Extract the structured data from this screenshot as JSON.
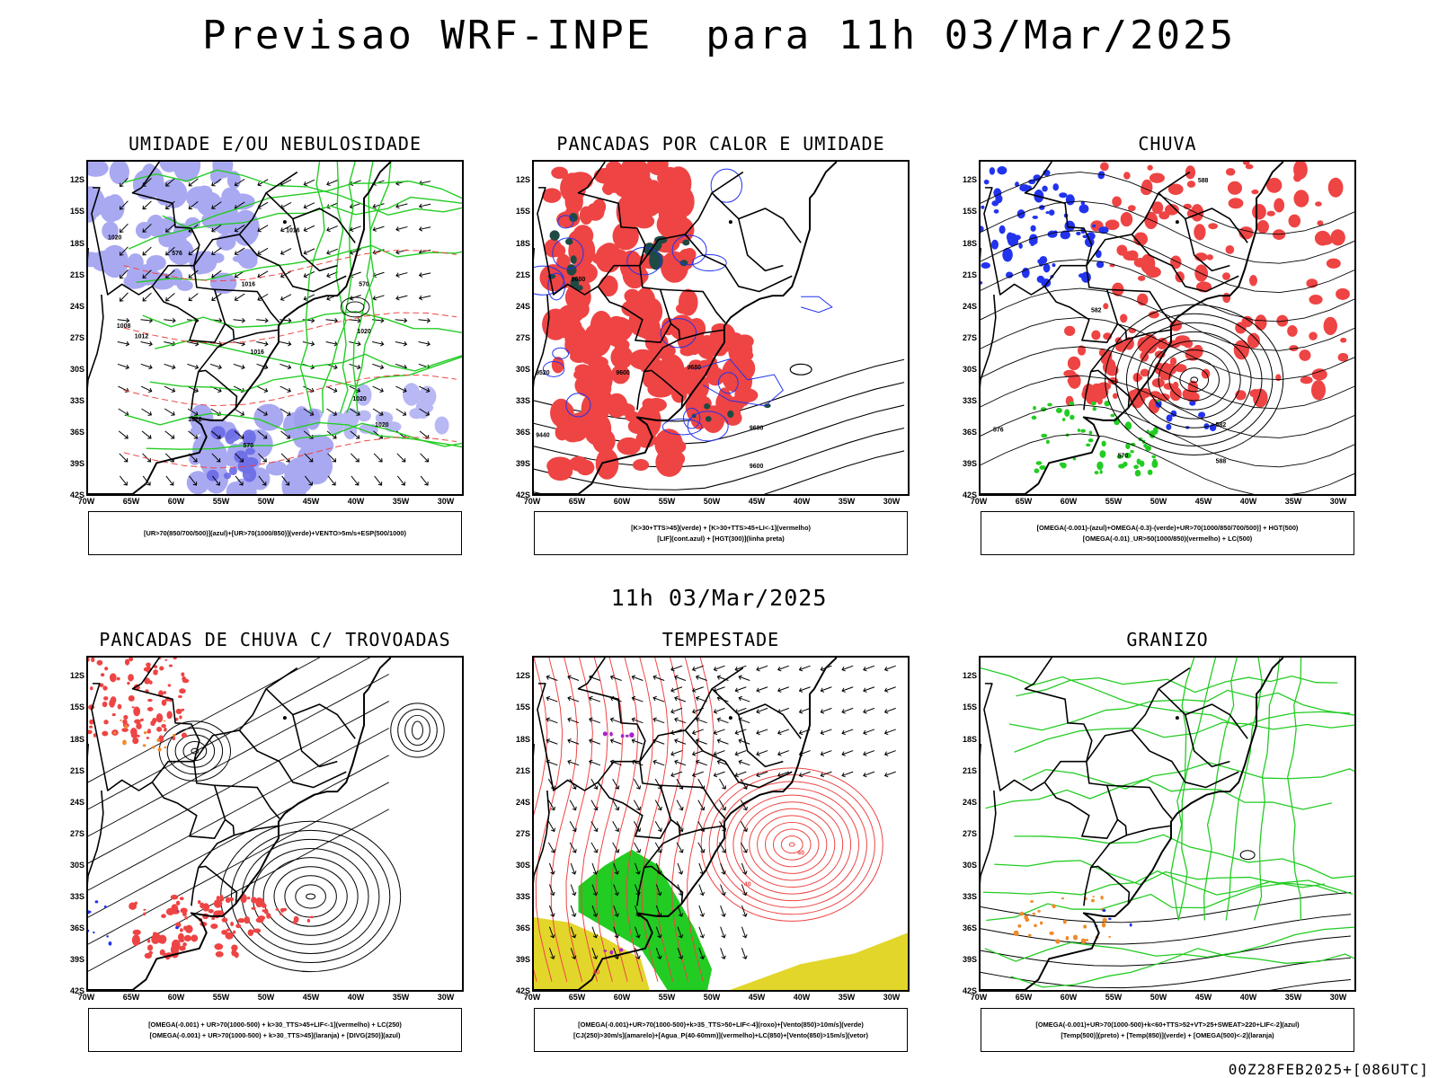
{
  "title": "Previsao WRF-INPE  para 11h 03/Mar/2025",
  "mid_label": "11h 03/Mar/2025",
  "footer": "00Z28FEB2025+[086UTC]",
  "colors": {
    "frame": "#000000",
    "humidity_blue": "#9b9bf0",
    "humidity_blue_dark": "#6a6ae6",
    "green": "#22cc22",
    "red": "#ee4444",
    "dark_teal": "#1f4a44",
    "blue": "#2233ee",
    "yellow": "#e2d62a",
    "orange": "#f08a2a",
    "purple": "#aa22cc"
  },
  "chart_data": [
    {
      "type": "map",
      "id": "umidade",
      "title": "UMIDADE E/OU NEBULOSIDADE",
      "legend": [
        "[UR>70(850/700/500)](azul)+[UR>70(1000/850)](verde)+VENTO>5m/s+ESP(500/1000)"
      ],
      "lat_ticks": [
        "12S",
        "15S",
        "18S",
        "21S",
        "24S",
        "27S",
        "30S",
        "33S",
        "36S",
        "39S",
        "42S"
      ],
      "lon_ticks": [
        "70W",
        "65W",
        "60W",
        "55W",
        "50W",
        "45W",
        "40W",
        "35W",
        "30W"
      ],
      "contour_labels": [
        "1016",
        "1016",
        "1020",
        "1012",
        "1008",
        "1016",
        "1020",
        "1020",
        "1020",
        "1012",
        "576",
        "570",
        "570"
      ]
    },
    {
      "type": "map",
      "id": "pancadas_calor",
      "title": "PANCADAS POR CALOR E UMIDADE",
      "legend": [
        "[K>30+TTS>45](verde) + [K>30+TTS>45+LI<-1](vermelho)",
        "[LIF](cont.azul) + [HGT(300)](linha preta)"
      ],
      "lat_ticks": [
        "12S",
        "15S",
        "18S",
        "21S",
        "24S",
        "27S",
        "30S",
        "33S",
        "36S",
        "39S",
        "42S"
      ],
      "lon_ticks": [
        "70W",
        "65W",
        "60W",
        "55W",
        "50W",
        "45W",
        "40W",
        "35W",
        "30W"
      ],
      "contour_labels": [
        "9600",
        "9600",
        "9680",
        "9680",
        "9440",
        "9520",
        "9600"
      ]
    },
    {
      "type": "map",
      "id": "chuva",
      "title": "CHUVA",
      "legend": [
        "[OMEGA(-0.001)-(azul)+OMEGA(-0.3)-(verde)+UR>70(1000/850/700/500)] + HGT(500)",
        "[OMEGA(-0.01)_UR>50(1000/850)(vermelho) + LC(500)"
      ],
      "lat_ticks": [
        "12S",
        "15S",
        "18S",
        "21S",
        "24S",
        "27S",
        "30S",
        "33S",
        "36S",
        "39S",
        "42S"
      ],
      "lon_ticks": [
        "70W",
        "65W",
        "60W",
        "55W",
        "50W",
        "45W",
        "40W",
        "35W",
        "30W"
      ],
      "contour_labels": [
        "588",
        "582",
        "576",
        "570",
        "582",
        "588"
      ]
    },
    {
      "type": "map",
      "id": "pancadas_trovoadas",
      "title": "PANCADAS DE CHUVA C/ TROVOADAS",
      "legend": [
        "[OMEGA(-0.001) + UR>70(1000-500) + k>30_TTS>45+LIF<-1](vermelho) + LC(250)",
        "[OMEGA(-0.001) + UR>70(1000-500) + k>30_TTS>45](laranja) + [DIVG(250)](azul)"
      ],
      "lat_ticks": [
        "12S",
        "15S",
        "18S",
        "21S",
        "24S",
        "27S",
        "30S",
        "33S",
        "36S",
        "39S",
        "42S"
      ],
      "lon_ticks": [
        "70W",
        "65W",
        "60W",
        "55W",
        "50W",
        "45W",
        "40W",
        "35W",
        "30W"
      ],
      "contour_labels": []
    },
    {
      "type": "map",
      "id": "tempestade",
      "title": "TEMPESTADE",
      "legend": [
        "[OMEGA(-0.001)+UR>70(1000-500)+k>35_TTS>50+LIF<-4](roxo)+[Vento(850)>10m/s](verde)",
        "[CJ(250)>30m/s](amarelo)+[Agua_P(40-60mm)](vermelho)+LC(850)+[Vento(850)>15m/s](vetor)"
      ],
      "lat_ticks": [
        "12S",
        "15S",
        "18S",
        "21S",
        "24S",
        "27S",
        "30S",
        "33S",
        "36S",
        "39S",
        "42S"
      ],
      "lon_ticks": [
        "70W",
        "65W",
        "60W",
        "55W",
        "50W",
        "45W",
        "40W",
        "35W",
        "30W"
      ],
      "contour_labels": [
        "40",
        "40",
        "40"
      ]
    },
    {
      "type": "map",
      "id": "granizo",
      "title": "GRANIZO",
      "legend": [
        "[OMEGA(-0.001)+UR>70(1000-500)+k<60+TTS>52+VT>25+SWEAT>220+LIF<-2](azul)",
        "[Temp(500)](preto) + [Temp(850)](verde) + [OMEGA(500)<-2](laranja)"
      ],
      "lat_ticks": [
        "12S",
        "15S",
        "18S",
        "21S",
        "24S",
        "27S",
        "30S",
        "33S",
        "36S",
        "39S",
        "42S"
      ],
      "lon_ticks": [
        "70W",
        "65W",
        "60W",
        "55W",
        "50W",
        "45W",
        "40W",
        "35W",
        "30W"
      ],
      "contour_labels": []
    }
  ]
}
